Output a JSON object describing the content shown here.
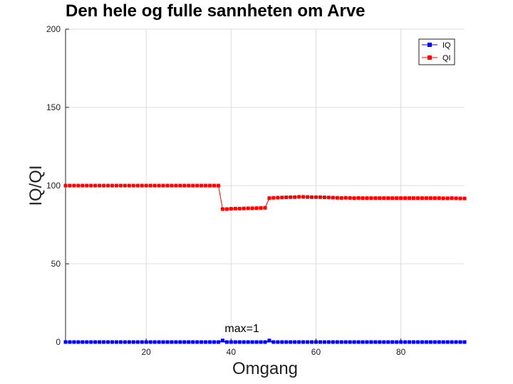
{
  "chart_data": {
    "type": "line",
    "title": "Den hele og fulle sannheten om Arve",
    "xlabel": "Omgang",
    "ylabel": "IQ/QI",
    "xlim": [
      1,
      95
    ],
    "ylim": [
      0,
      200
    ],
    "xticks": [
      20,
      40,
      60,
      80
    ],
    "yticks": [
      0,
      50,
      100,
      150,
      200
    ],
    "grid": true,
    "legend_position": "top-right",
    "annotation": {
      "text": "max=1",
      "x": 38,
      "y": 1
    },
    "series": [
      {
        "name": "IQ",
        "color": "#0000ff",
        "marker": "square",
        "x": [
          1,
          2,
          3,
          4,
          5,
          6,
          7,
          8,
          9,
          10,
          11,
          12,
          13,
          14,
          15,
          16,
          17,
          18,
          19,
          20,
          21,
          22,
          23,
          24,
          25,
          26,
          27,
          28,
          29,
          30,
          31,
          32,
          33,
          34,
          35,
          36,
          37,
          38,
          39,
          40,
          41,
          42,
          43,
          44,
          45,
          46,
          47,
          48,
          49,
          50,
          51,
          52,
          53,
          54,
          55,
          56,
          57,
          58,
          59,
          60,
          61,
          62,
          63,
          64,
          65,
          66,
          67,
          68,
          69,
          70,
          71,
          72,
          73,
          74,
          75,
          76,
          77,
          78,
          79,
          80,
          81,
          82,
          83,
          84,
          85,
          86,
          87,
          88,
          89,
          90,
          91,
          92,
          93,
          94,
          95
        ],
        "values": [
          0,
          0,
          0,
          0,
          0,
          0,
          0,
          0,
          0,
          0,
          0,
          0,
          0,
          0,
          0,
          0,
          0,
          0,
          0,
          0,
          0,
          0,
          0,
          0,
          0,
          0,
          0,
          0,
          0,
          0,
          0,
          0,
          0,
          0,
          0,
          0,
          0,
          1,
          0,
          0,
          0,
          0,
          0,
          0,
          0,
          0,
          0,
          0,
          1,
          0,
          0,
          0,
          0,
          0,
          0,
          0,
          0,
          0,
          0,
          0,
          0,
          0,
          0,
          0,
          0,
          0,
          0,
          0,
          0,
          0,
          0,
          0,
          0,
          0,
          0,
          0,
          0,
          0,
          0,
          0,
          0,
          0,
          0,
          0,
          0,
          0,
          0,
          0,
          0,
          0,
          0,
          0,
          0,
          0,
          0
        ]
      },
      {
        "name": "QI",
        "color": "#ff0000",
        "marker": "square",
        "x": [
          1,
          2,
          3,
          4,
          5,
          6,
          7,
          8,
          9,
          10,
          11,
          12,
          13,
          14,
          15,
          16,
          17,
          18,
          19,
          20,
          21,
          22,
          23,
          24,
          25,
          26,
          27,
          28,
          29,
          30,
          31,
          32,
          33,
          34,
          35,
          36,
          37,
          38,
          39,
          40,
          41,
          42,
          43,
          44,
          45,
          46,
          47,
          48,
          49,
          50,
          51,
          52,
          53,
          54,
          55,
          56,
          57,
          58,
          59,
          60,
          61,
          62,
          63,
          64,
          65,
          66,
          67,
          68,
          69,
          70,
          71,
          72,
          73,
          74,
          75,
          76,
          77,
          78,
          79,
          80,
          81,
          82,
          83,
          84,
          85,
          86,
          87,
          88,
          89,
          90,
          91,
          92,
          93,
          94,
          95
        ],
        "values": [
          100,
          100,
          100,
          100,
          100,
          100,
          100,
          100,
          100,
          100,
          100,
          100,
          100,
          100,
          100,
          100,
          100,
          100,
          100,
          100,
          100,
          100,
          100,
          100,
          100,
          100,
          100,
          100,
          100,
          100,
          100,
          100,
          100,
          100,
          100,
          100,
          100,
          85,
          85,
          85.2,
          85.3,
          85.3,
          85.4,
          85.5,
          85.5,
          85.6,
          85.7,
          85.8,
          92,
          92.2,
          92.3,
          92.4,
          92.5,
          92.6,
          92.6,
          92.8,
          92.8,
          92.7,
          92.6,
          92.6,
          92.6,
          92.5,
          92.4,
          92.3,
          92.2,
          92.1,
          92.2,
          92.1,
          92,
          92.1,
          92,
          92,
          92,
          92,
          92,
          92,
          92,
          92,
          92,
          92,
          92,
          92,
          92,
          92,
          92,
          92,
          92,
          92,
          92,
          91.9,
          91.9,
          92,
          91.9,
          91.8,
          91.8
        ]
      }
    ]
  }
}
